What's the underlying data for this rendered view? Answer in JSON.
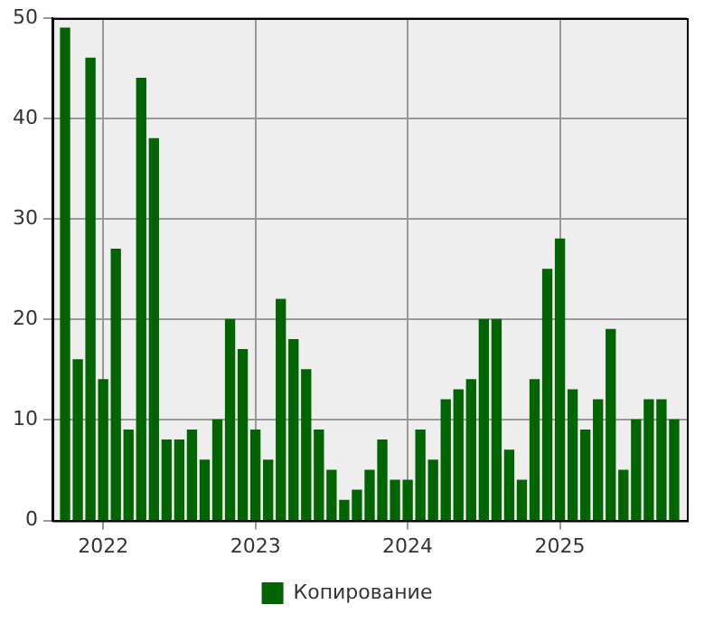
{
  "chart_data": {
    "type": "bar",
    "x": [
      "2021-10",
      "2021-11",
      "2021-12",
      "2022-01",
      "2022-02",
      "2022-03",
      "2022-04",
      "2022-05",
      "2022-06",
      "2022-07",
      "2022-08",
      "2022-09",
      "2022-10",
      "2022-11",
      "2022-12",
      "2023-01",
      "2023-02",
      "2023-03",
      "2023-04",
      "2023-05",
      "2023-06",
      "2023-07",
      "2023-08",
      "2023-09",
      "2023-10",
      "2023-11",
      "2023-12",
      "2024-01",
      "2024-02",
      "2024-03",
      "2024-04",
      "2024-05",
      "2024-06",
      "2024-07",
      "2024-08",
      "2024-09",
      "2024-10",
      "2024-11",
      "2024-12",
      "2025-01",
      "2025-02",
      "2025-03",
      "2025-04",
      "2025-05",
      "2025-06",
      "2025-07",
      "2025-08",
      "2025-09",
      "2025-10"
    ],
    "series": [
      {
        "name": "Копирование",
        "color": "#006400",
        "values": [
          49,
          16,
          46,
          14,
          27,
          9,
          44,
          38,
          8,
          8,
          9,
          6,
          10,
          20,
          17,
          9,
          6,
          22,
          18,
          15,
          9,
          5,
          2,
          3,
          5,
          8,
          4,
          4,
          9,
          6,
          12,
          13,
          14,
          20,
          20,
          7,
          4,
          14,
          25,
          28,
          13,
          9,
          12,
          19,
          5,
          10,
          12,
          12,
          10
        ]
      }
    ],
    "xlim": [
      "2021-09",
      "2025-11"
    ],
    "xticks": [
      "2022",
      "2023",
      "2024",
      "2025"
    ],
    "ylim": [
      0,
      50
    ],
    "yticks": [
      0,
      10,
      20,
      30,
      40,
      50
    ],
    "grid": true,
    "legend": "bottom"
  }
}
